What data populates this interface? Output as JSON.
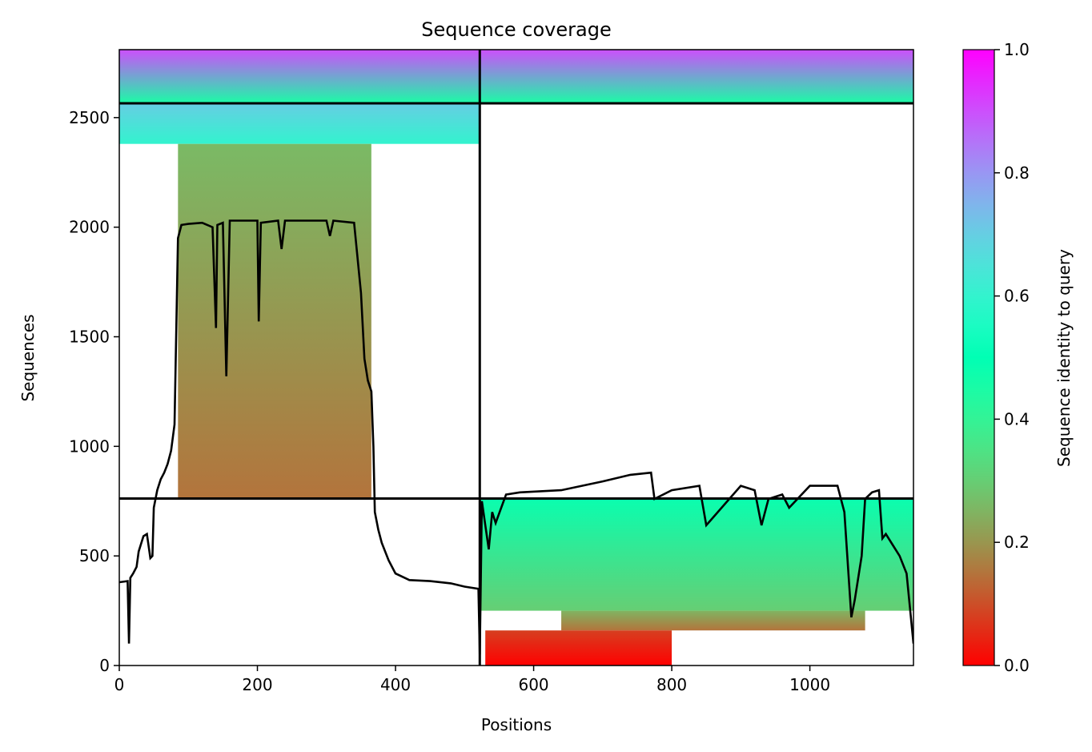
{
  "chart_data": {
    "type": "heatmap",
    "title": "Sequence coverage",
    "xlabel": "Positions",
    "ylabel": "Sequences",
    "xlim": [
      0,
      1150
    ],
    "ylim": [
      0,
      2810
    ],
    "xticks": [
      0,
      200,
      400,
      600,
      800,
      1000
    ],
    "yticks": [
      0,
      500,
      1000,
      1500,
      2000,
      2500
    ],
    "colorbar": {
      "label": "Sequence identity to query",
      "range": [
        0,
        1
      ],
      "ticks": [
        "0.0",
        "0.2",
        "0.4",
        "0.6",
        "0.8",
        "1.0"
      ],
      "colormap": "rainbow_r"
    },
    "chain_boundary_x": 522,
    "block_boundaries_y": [
      762,
      2565
    ],
    "blocks": [
      {
        "x_start": 0,
        "x_end": 522,
        "y_start": 2565,
        "y_end": 2810,
        "identity_top": 0.9,
        "identity_bottom": 0.45
      },
      {
        "x_start": 522,
        "x_end": 1150,
        "y_start": 2565,
        "y_end": 2810,
        "identity_top": 0.9,
        "identity_bottom": 0.45
      },
      {
        "x_start": 0,
        "x_end": 522,
        "y_start": 2380,
        "y_end": 2565,
        "identity_top": 0.7,
        "identity_bottom": 0.6
      },
      {
        "x_start": 85,
        "x_end": 365,
        "y_start": 762,
        "y_end": 2380,
        "identity_top": 0.26,
        "identity_bottom": 0.15
      },
      {
        "x_start": 522,
        "x_end": 1150,
        "y_start": 250,
        "y_end": 762,
        "identity_top": 0.48,
        "identity_bottom": 0.3
      },
      {
        "x_start": 640,
        "x_end": 1080,
        "y_start": 160,
        "y_end": 250,
        "identity_top": 0.25,
        "identity_bottom": 0.15
      },
      {
        "x_start": 530,
        "x_end": 800,
        "y_start": 0,
        "y_end": 160,
        "identity_top": 0.08,
        "identity_bottom": 0.0
      }
    ],
    "coverage_line": {
      "x": [
        0,
        12,
        14,
        16,
        20,
        25,
        28,
        32,
        35,
        40,
        45,
        48,
        50,
        55,
        60,
        65,
        70,
        75,
        80,
        85,
        90,
        100,
        120,
        135,
        140,
        142,
        150,
        155,
        160,
        200,
        202,
        205,
        230,
        235,
        240,
        300,
        305,
        310,
        340,
        350,
        355,
        360,
        365,
        368,
        370,
        375,
        380,
        390,
        400,
        420,
        450,
        480,
        500,
        520,
        522,
        525,
        535,
        540,
        545,
        560,
        580,
        640,
        700,
        740,
        770,
        775,
        800,
        840,
        850,
        900,
        920,
        930,
        940,
        960,
        970,
        1000,
        1040,
        1050,
        1060,
        1065,
        1075,
        1080,
        1090,
        1100,
        1105,
        1110,
        1120,
        1130,
        1140,
        1150
      ],
      "y": [
        380,
        385,
        100,
        400,
        420,
        450,
        520,
        560,
        590,
        600,
        490,
        500,
        720,
        800,
        850,
        880,
        920,
        980,
        1100,
        1950,
        2010,
        2015,
        2020,
        2000,
        1540,
        2010,
        2020,
        1320,
        2030,
        2030,
        1570,
        2020,
        2030,
        1900,
        2030,
        2030,
        1960,
        2030,
        2020,
        1700,
        1400,
        1300,
        1250,
        1000,
        700,
        620,
        560,
        480,
        420,
        390,
        385,
        375,
        360,
        350,
        50,
        750,
        530,
        700,
        650,
        780,
        790,
        800,
        840,
        870,
        880,
        760,
        800,
        820,
        640,
        820,
        800,
        640,
        760,
        780,
        720,
        820,
        820,
        700,
        220,
        300,
        500,
        760,
        790,
        800,
        580,
        600,
        550,
        500,
        420,
        100
      ]
    }
  }
}
